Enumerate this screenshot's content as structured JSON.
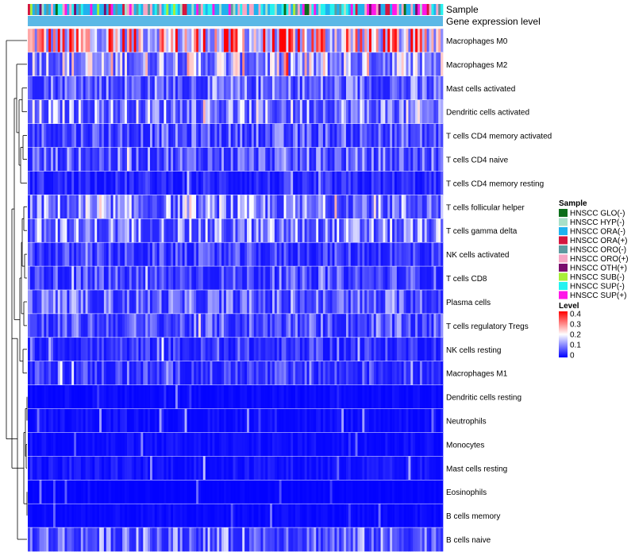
{
  "chart_data": {
    "type": "heatmap",
    "title": "",
    "annotation_tracks": [
      "Sample",
      "Gene expression level"
    ],
    "rows": [
      {
        "label": "Macrophages M0",
        "mean": 0.3
      },
      {
        "label": "Macrophages M2",
        "mean": 0.17
      },
      {
        "label": "Mast cells activated",
        "mean": 0.1
      },
      {
        "label": "Dendritic cells activated",
        "mean": 0.13
      },
      {
        "label": "T cells CD4 memory activated",
        "mean": 0.08
      },
      {
        "label": "T cells CD4 naive",
        "mean": 0.09
      },
      {
        "label": "T cells CD4 memory resting",
        "mean": 0.04
      },
      {
        "label": "T cells follicular helper",
        "mean": 0.12
      },
      {
        "label": "T cells gamma delta",
        "mean": 0.12
      },
      {
        "label": "NK cells activated",
        "mean": 0.06
      },
      {
        "label": "T cells CD8",
        "mean": 0.07
      },
      {
        "label": "Plasma cells",
        "mean": 0.09
      },
      {
        "label": "T cells regulatory  Tregs",
        "mean": 0.08
      },
      {
        "label": "NK cells resting",
        "mean": 0.05
      },
      {
        "label": "Macrophages M1",
        "mean": 0.06
      },
      {
        "label": "Dendritic cells resting",
        "mean": 0.01
      },
      {
        "label": "Neutrophils",
        "mean": 0.015
      },
      {
        "label": "Monocytes",
        "mean": 0.015
      },
      {
        "label": "Mast cells resting",
        "mean": 0.02
      },
      {
        "label": "Eosinophils",
        "mean": 0.005
      },
      {
        "label": "B cells memory",
        "mean": 0.01
      },
      {
        "label": "B cells naive",
        "mean": 0.1
      }
    ],
    "n_samples": 180,
    "sample_legend": {
      "title": "Sample",
      "items": [
        {
          "label": "HNSCC GLO(-)",
          "color": "#0b6e1a"
        },
        {
          "label": "HNSCC HYP(-)",
          "color": "#a8e0c8"
        },
        {
          "label": "HNSCC ORA(-)",
          "color": "#1fb2ee"
        },
        {
          "label": "HNSCC ORA(+)",
          "color": "#d5163f"
        },
        {
          "label": "HNSCC ORO(-)",
          "color": "#5d9aa0"
        },
        {
          "label": "HNSCC ORO(+)",
          "color": "#f6a6c4"
        },
        {
          "label": "HNSCC OTH(+)",
          "color": "#7a0c6e"
        },
        {
          "label": "HNSCC SUB(-)",
          "color": "#a8ee3a"
        },
        {
          "label": "HNSCC SUP(-)",
          "color": "#25f2f0"
        },
        {
          "label": "HNSCC SUP(+)",
          "color": "#ff16e8"
        }
      ]
    },
    "level_legend": {
      "title": "Level",
      "range": [
        0,
        0.4
      ],
      "ticks": [
        "0.4",
        "0.3",
        "0.2",
        "0.1",
        "0"
      ],
      "colors": [
        "#0000ff",
        "#ffffff",
        "#ff0000"
      ]
    },
    "gene_expression_color": "#5bb8e6"
  }
}
